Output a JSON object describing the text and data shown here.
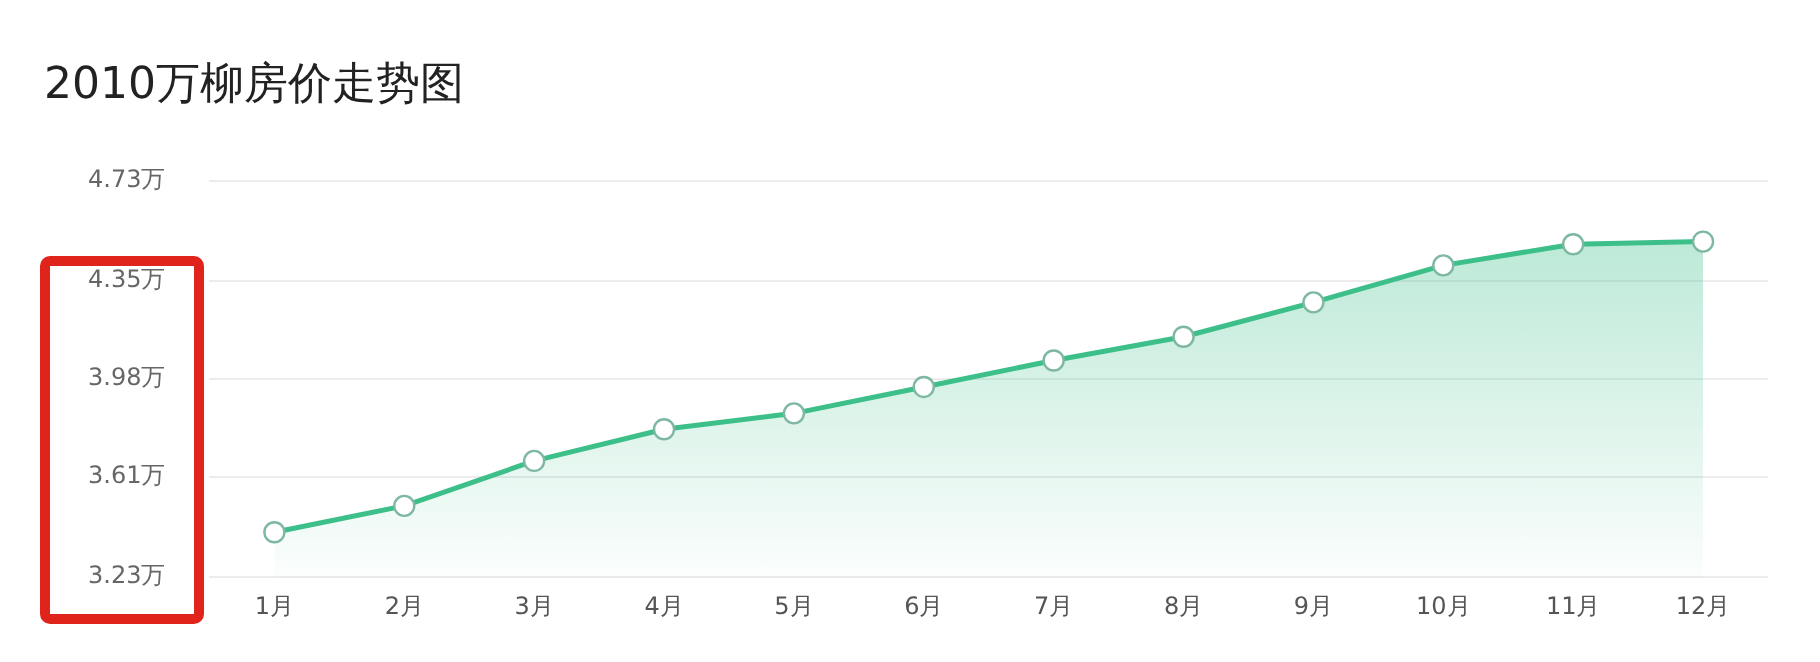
{
  "chart_data": {
    "type": "area",
    "title": "2010万柳房价走势图",
    "categories": [
      "1月",
      "2月",
      "3月",
      "4月",
      "5月",
      "6月",
      "7月",
      "8月",
      "9月",
      "10月",
      "11月",
      "12月"
    ],
    "series": [
      {
        "color": "#3dbf8a",
        "values": [
          3.4,
          3.5,
          3.67,
          3.79,
          3.85,
          3.95,
          4.05,
          4.14,
          4.27,
          4.41,
          4.49,
          4.5
        ]
      }
    ],
    "ylim": [
      3.23,
      4.73
    ],
    "yticks": [
      {
        "value": 3.23,
        "label": "3.23万"
      },
      {
        "value": 3.61,
        "label": "3.61万"
      },
      {
        "value": 3.98,
        "label": "3.98万"
      },
      {
        "value": 4.35,
        "label": "4.35万"
      },
      {
        "value": 4.73,
        "label": "4.73万"
      }
    ],
    "grid": "y",
    "legend": false,
    "marker": "circle",
    "line_style": "solid"
  }
}
